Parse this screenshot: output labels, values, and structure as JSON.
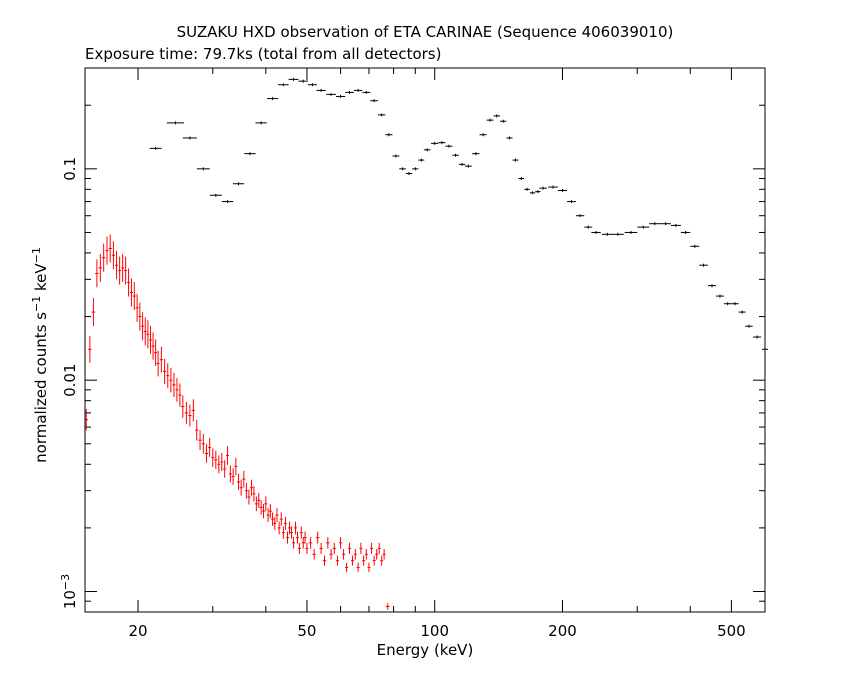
{
  "chart_data": {
    "type": "scatter",
    "title": "SUZAKU HXD observation of ETA CARINAE (Sequence 406039010)",
    "subtitle": "Exposure time: 79.7ks (total from all detectors)",
    "xlabel": "Energy (keV)",
    "ylabel_parts": {
      "base": "normalized counts s",
      "sup1": "−1",
      "mid": " keV",
      "sup2": "−1"
    },
    "x_scale": "log",
    "y_scale": "log",
    "xlim": [
      15,
      600
    ],
    "ylim": [
      0.0008,
      0.3
    ],
    "x_tick_labels": [
      {
        "value": 20,
        "label": "20"
      },
      {
        "value": 50,
        "label": "50"
      },
      {
        "value": 100,
        "label": "100"
      },
      {
        "value": 200,
        "label": "200"
      },
      {
        "value": 500,
        "label": "500"
      }
    ],
    "y_tick_labels": [
      {
        "value": 0.001,
        "label": "10",
        "sup": "−3"
      },
      {
        "value": 0.01,
        "label": "0.01"
      },
      {
        "value": 0.1,
        "label": "0.1"
      }
    ],
    "grid": false,
    "series": [
      {
        "color": "#000000",
        "points": [
          [
            22,
            0.125
          ],
          [
            24.5,
            0.165
          ],
          [
            26.5,
            0.14
          ],
          [
            28.5,
            0.1
          ],
          [
            30.5,
            0.075
          ],
          [
            32.5,
            0.07
          ],
          [
            34.5,
            0.085
          ],
          [
            36.7,
            0.118
          ],
          [
            39,
            0.165
          ],
          [
            41.5,
            0.215
          ],
          [
            44,
            0.25
          ],
          [
            46.5,
            0.265
          ],
          [
            49,
            0.26
          ],
          [
            51.5,
            0.25
          ],
          [
            54,
            0.235
          ],
          [
            57,
            0.225
          ],
          [
            60,
            0.22
          ],
          [
            63,
            0.23
          ],
          [
            66,
            0.235
          ],
          [
            69,
            0.23
          ],
          [
            72,
            0.21
          ],
          [
            75,
            0.18
          ],
          [
            78,
            0.145
          ],
          [
            81,
            0.115
          ],
          [
            84,
            0.1
          ],
          [
            87,
            0.095
          ],
          [
            90,
            0.1
          ],
          [
            93,
            0.11
          ],
          [
            96,
            0.123
          ],
          [
            100,
            0.132
          ],
          [
            104,
            0.133
          ],
          [
            108,
            0.128
          ],
          [
            112,
            0.116
          ],
          [
            116,
            0.105
          ],
          [
            120,
            0.103
          ],
          [
            125,
            0.118
          ],
          [
            130,
            0.145
          ],
          [
            135,
            0.17
          ],
          [
            140,
            0.178
          ],
          [
            145,
            0.168
          ],
          [
            150,
            0.14
          ],
          [
            155,
            0.11
          ],
          [
            160,
            0.09
          ],
          [
            165,
            0.08
          ],
          [
            170,
            0.077
          ],
          [
            175,
            0.078
          ],
          [
            180,
            0.081
          ],
          [
            190,
            0.082
          ],
          [
            200,
            0.079
          ],
          [
            210,
            0.07
          ],
          [
            220,
            0.06
          ],
          [
            230,
            0.053
          ],
          [
            240,
            0.05
          ],
          [
            255,
            0.049
          ],
          [
            270,
            0.049
          ],
          [
            290,
            0.05
          ],
          [
            310,
            0.053
          ],
          [
            330,
            0.055
          ],
          [
            350,
            0.055
          ],
          [
            370,
            0.054
          ],
          [
            390,
            0.05
          ],
          [
            410,
            0.043
          ],
          [
            430,
            0.035
          ],
          [
            450,
            0.028
          ],
          [
            470,
            0.025
          ],
          [
            490,
            0.023
          ],
          [
            510,
            0.023
          ],
          [
            530,
            0.021
          ],
          [
            550,
            0.018
          ],
          [
            575,
            0.016
          ],
          [
            600,
            0.014
          ]
        ]
      },
      {
        "color": "#ff0000",
        "points": [
          [
            15.1,
            0.0065
          ],
          [
            15.4,
            0.014
          ],
          [
            15.7,
            0.021
          ],
          [
            16,
            0.032
          ],
          [
            16.3,
            0.034
          ],
          [
            16.6,
            0.038
          ],
          [
            16.9,
            0.041
          ],
          [
            17.2,
            0.042
          ],
          [
            17.5,
            0.039
          ],
          [
            17.8,
            0.035
          ],
          [
            18.1,
            0.033
          ],
          [
            18.4,
            0.034
          ],
          [
            18.7,
            0.033
          ],
          [
            19,
            0.029
          ],
          [
            19.3,
            0.026
          ],
          [
            19.6,
            0.025
          ],
          [
            19.9,
            0.022
          ],
          [
            20.2,
            0.02
          ],
          [
            20.5,
            0.018
          ],
          [
            20.8,
            0.017
          ],
          [
            21.1,
            0.0165
          ],
          [
            21.4,
            0.0155
          ],
          [
            21.7,
            0.0145
          ],
          [
            22.0,
            0.0135
          ],
          [
            22.3,
            0.012
          ],
          [
            22.7,
            0.0125
          ],
          [
            23.1,
            0.011
          ],
          [
            23.5,
            0.0105
          ],
          [
            23.9,
            0.01
          ],
          [
            24.3,
            0.0095
          ],
          [
            24.7,
            0.009
          ],
          [
            25.1,
            0.0085
          ],
          [
            25.5,
            0.0075
          ],
          [
            26.0,
            0.007
          ],
          [
            26.5,
            0.0068
          ],
          [
            27.0,
            0.0072
          ],
          [
            27.5,
            0.0058
          ],
          [
            28.0,
            0.0052
          ],
          [
            28.5,
            0.005
          ],
          [
            29.0,
            0.0045
          ],
          [
            29.5,
            0.0048
          ],
          [
            30.0,
            0.0043
          ],
          [
            30.5,
            0.0042
          ],
          [
            31.0,
            0.004
          ],
          [
            31.5,
            0.0041
          ],
          [
            32.0,
            0.0038
          ],
          [
            32.5,
            0.0044
          ],
          [
            33.0,
            0.0036
          ],
          [
            33.5,
            0.0035
          ],
          [
            34.0,
            0.0039
          ],
          [
            34.5,
            0.0033
          ],
          [
            35.0,
            0.0031
          ],
          [
            35.5,
            0.0034
          ],
          [
            36.0,
            0.003
          ],
          [
            36.5,
            0.0028
          ],
          [
            37.0,
            0.0031
          ],
          [
            37.5,
            0.0029
          ],
          [
            38.0,
            0.0026
          ],
          [
            38.5,
            0.0027
          ],
          [
            39.0,
            0.0025
          ],
          [
            39.5,
            0.0024
          ],
          [
            40.0,
            0.0026
          ],
          [
            40.5,
            0.0023
          ],
          [
            41.0,
            0.0024
          ],
          [
            41.5,
            0.0022
          ],
          [
            42.0,
            0.0021
          ],
          [
            42.5,
            0.0023
          ],
          [
            43.0,
            0.002
          ],
          [
            43.5,
            0.0022
          ],
          [
            44.0,
            0.0019
          ],
          [
            44.5,
            0.0021
          ],
          [
            45.0,
            0.0018
          ],
          [
            45.5,
            0.002
          ],
          [
            46.0,
            0.0019
          ],
          [
            46.5,
            0.0017
          ],
          [
            47.0,
            0.002
          ],
          [
            47.5,
            0.0018
          ],
          [
            48.0,
            0.0016
          ],
          [
            48.5,
            0.0019
          ],
          [
            49.0,
            0.0017
          ],
          [
            49.5,
            0.0018
          ],
          [
            50.0,
            0.0016
          ],
          [
            51.0,
            0.0017
          ],
          [
            52.0,
            0.0015
          ],
          [
            53.0,
            0.0018
          ],
          [
            54.0,
            0.0016
          ],
          [
            55.0,
            0.0014
          ],
          [
            56.0,
            0.0017
          ],
          [
            57.0,
            0.0015
          ],
          [
            58.0,
            0.0016
          ],
          [
            59.0,
            0.0014
          ],
          [
            60.0,
            0.0017
          ],
          [
            61.0,
            0.0015
          ],
          [
            62.0,
            0.0013
          ],
          [
            63.0,
            0.0016
          ],
          [
            64.0,
            0.0014
          ],
          [
            65.0,
            0.0015
          ],
          [
            66.0,
            0.0013
          ],
          [
            67.0,
            0.0016
          ],
          [
            68.0,
            0.0014
          ],
          [
            69.0,
            0.0015
          ],
          [
            70.0,
            0.0013
          ],
          [
            71.0,
            0.0016
          ],
          [
            72.0,
            0.0014
          ],
          [
            73.0,
            0.0015
          ],
          [
            74.0,
            0.0016
          ],
          [
            75.0,
            0.0014
          ],
          [
            76.0,
            0.0015
          ],
          [
            77.5,
            0.00085
          ]
        ]
      }
    ]
  }
}
